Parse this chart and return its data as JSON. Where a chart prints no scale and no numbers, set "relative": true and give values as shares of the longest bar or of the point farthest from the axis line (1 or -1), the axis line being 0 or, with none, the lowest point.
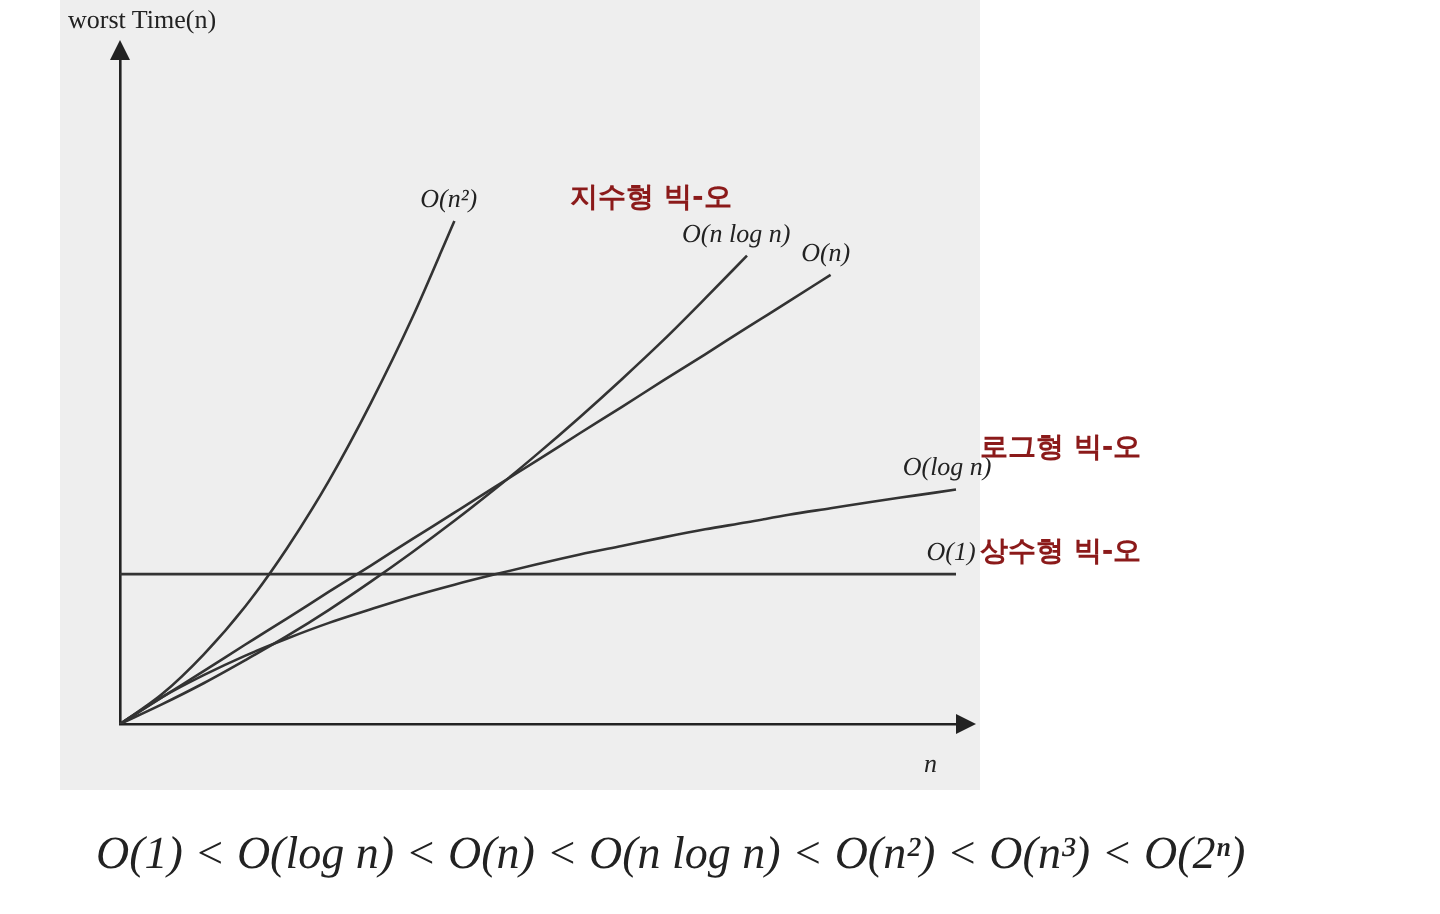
{
  "chart_data": {
    "type": "line",
    "relative": true,
    "tick_labels": false,
    "grid": false,
    "legend": false,
    "marker": "none",
    "line_style": "solid",
    "xlabel": "n",
    "categories": [
      null,
      null,
      null,
      null,
      null,
      null,
      null,
      null,
      null,
      null,
      null,
      null,
      null,
      null,
      null,
      null,
      null,
      null,
      null,
      null,
      null
    ],
    "series": [
      {
        "name": "O(n²)",
        "color": "#333333",
        "values": [
          0,
          0.059,
          0.138,
          0.234,
          0.35,
          0.484,
          0.638,
          0.809,
          1,
          null,
          null,
          null,
          null,
          null,
          null,
          null,
          null,
          null,
          null,
          null,
          null
        ]
      },
      {
        "name": "O(n log n)",
        "color": "#333333",
        "values": [
          0,
          0.039,
          0.081,
          0.127,
          0.175,
          0.227,
          0.283,
          0.342,
          0.404,
          0.469,
          0.538,
          0.61,
          0.685,
          0.763,
          0.846,
          0.931,
          null,
          null,
          null,
          null,
          null
        ]
      },
      {
        "name": "O(n)",
        "color": "#333333",
        "values": [
          0,
          0.053,
          0.105,
          0.158,
          0.21,
          0.263,
          0.315,
          0.368,
          0.42,
          0.473,
          0.525,
          0.578,
          0.63,
          0.683,
          0.735,
          0.788,
          0.84,
          0.893,
          null,
          null,
          null
        ]
      },
      {
        "name": "O(log n)",
        "color": "#333333",
        "values": [
          0,
          0.053,
          0.097,
          0.136,
          0.17,
          0.201,
          0.228,
          0.254,
          0.277,
          0.298,
          0.318,
          0.337,
          0.354,
          0.371,
          0.387,
          0.401,
          0.416,
          0.429,
          0.442,
          0.454,
          0.466
        ]
      },
      {
        "name": "O(1)",
        "color": "#333333",
        "values": [
          0.298,
          0.298,
          0.298,
          0.298,
          0.298,
          0.298,
          0.298,
          0.298,
          0.298,
          0.298,
          0.298,
          0.298,
          0.298,
          0.298,
          0.298,
          0.298,
          0.298,
          0.298,
          0.298,
          0.298,
          0.298
        ]
      }
    ],
    "annotations": [
      "지수형 빅-오",
      "로그형 빅-오",
      "상수형 빅-오",
      "O(1) < O(log n) < O(n) < O(n log n) < O(n²) < O(n³) < O(2ⁿ)",
      "worst Time(n)"
    ]
  }
}
